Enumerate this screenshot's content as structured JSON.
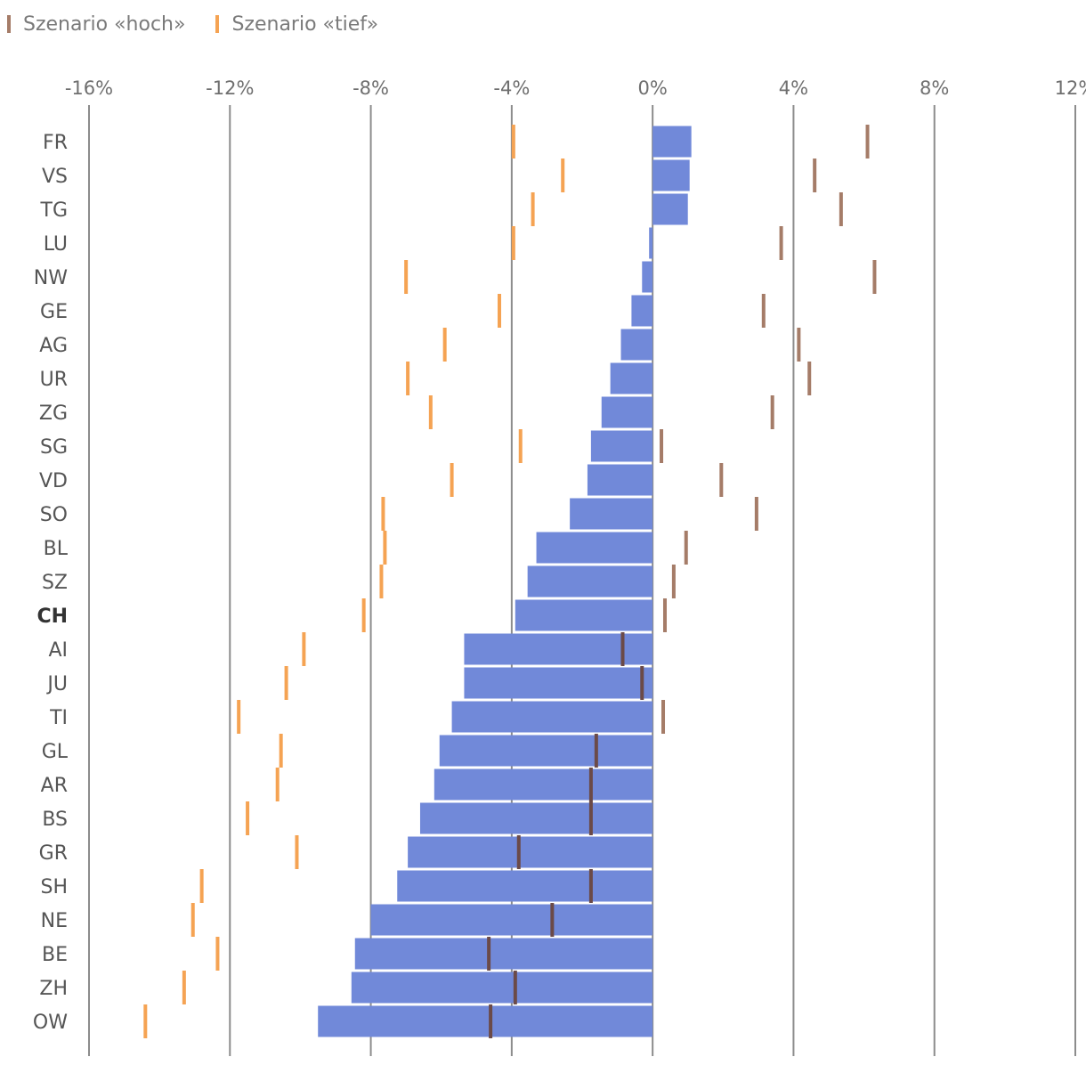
{
  "legend": {
    "hoch_label": "Szenario «hoch»",
    "tief_label": "Szenario «tief»"
  },
  "colors": {
    "bar": "#7189d9",
    "hoch_positive": "#a57c68",
    "hoch_on_bar": "#6b4a48",
    "tief": "#f5a353",
    "grid": "#8c8c8c",
    "tick_text": "#6f6f6f",
    "category_text": "#555555"
  },
  "chart_data": {
    "type": "bar",
    "orientation": "horizontal",
    "xlim": [
      -16,
      12
    ],
    "ticks": [
      -16,
      -12,
      -8,
      -4,
      0,
      4,
      8,
      12
    ],
    "tick_labels": [
      "-16%",
      "-12%",
      "-8%",
      "-4%",
      "0%",
      "4%",
      "8%",
      "12%"
    ],
    "categories": [
      "FR",
      "VS",
      "TG",
      "LU",
      "NW",
      "GE",
      "AG",
      "UR",
      "ZG",
      "SG",
      "VD",
      "SO",
      "BL",
      "SZ",
      "CH",
      "AI",
      "JU",
      "TI",
      "GL",
      "AR",
      "BS",
      "GR",
      "SH",
      "NE",
      "BE",
      "ZH",
      "OW"
    ],
    "bold_category": "CH",
    "values": [
      1.1,
      1.05,
      1.0,
      -0.1,
      -0.3,
      -0.6,
      -0.9,
      -1.2,
      -1.45,
      -1.75,
      -1.85,
      -2.35,
      -3.3,
      -3.55,
      -3.9,
      -5.35,
      -5.35,
      -5.7,
      -6.05,
      -6.2,
      -6.6,
      -6.95,
      -7.25,
      -8.0,
      -8.45,
      -8.55,
      -9.5
    ],
    "markers": [
      {
        "name": "Szenario «hoch»",
        "values": [
          6.1,
          4.6,
          5.35,
          3.65,
          6.3,
          3.15,
          4.15,
          4.45,
          3.4,
          0.25,
          1.95,
          2.95,
          0.95,
          0.6,
          0.35,
          -0.85,
          -0.3,
          0.3,
          -1.6,
          -1.75,
          -1.75,
          -3.8,
          -1.75,
          -2.85,
          -4.65,
          -3.9,
          -4.6
        ]
      },
      {
        "name": "Szenario «tief»",
        "values": [
          -3.95,
          -2.55,
          -3.4,
          -3.95,
          -7.0,
          -4.35,
          -5.9,
          -6.95,
          -6.3,
          -3.75,
          -5.7,
          -7.65,
          -7.6,
          -7.7,
          -8.2,
          -9.9,
          -10.4,
          -11.75,
          -10.55,
          -10.65,
          -11.5,
          -10.1,
          -12.8,
          -13.05,
          -12.35,
          -13.3,
          -14.4
        ]
      }
    ]
  }
}
